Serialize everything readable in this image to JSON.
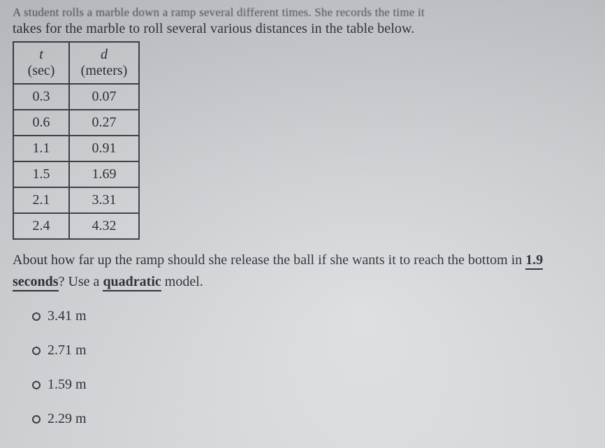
{
  "cutoff_text": "A student rolls a marble down a ramp several different times. She records the time it",
  "intro": "takes for the marble to roll several various distances in the table below.",
  "table": {
    "header_var_t": "t",
    "header_var_d": "d",
    "header_unit_t": "(sec)",
    "header_unit_d": "(meters)",
    "rows": [
      {
        "t": "0.3",
        "d": "0.07"
      },
      {
        "t": "0.6",
        "d": "0.27"
      },
      {
        "t": "1.1",
        "d": "0.91"
      },
      {
        "t": "1.5",
        "d": "1.69"
      },
      {
        "t": "2.1",
        "d": "3.31"
      },
      {
        "t": "2.4",
        "d": "4.32"
      }
    ]
  },
  "question": {
    "part1": "About how far up the ramp should she release the ball if she wants it to reach the bottom in ",
    "seconds": "1.9 seconds",
    "part2": "? Use a ",
    "quadratic": "quadratic",
    "part3": " model."
  },
  "options": [
    "3.41 m",
    "2.71 m",
    "1.59 m",
    "2.29 m"
  ]
}
